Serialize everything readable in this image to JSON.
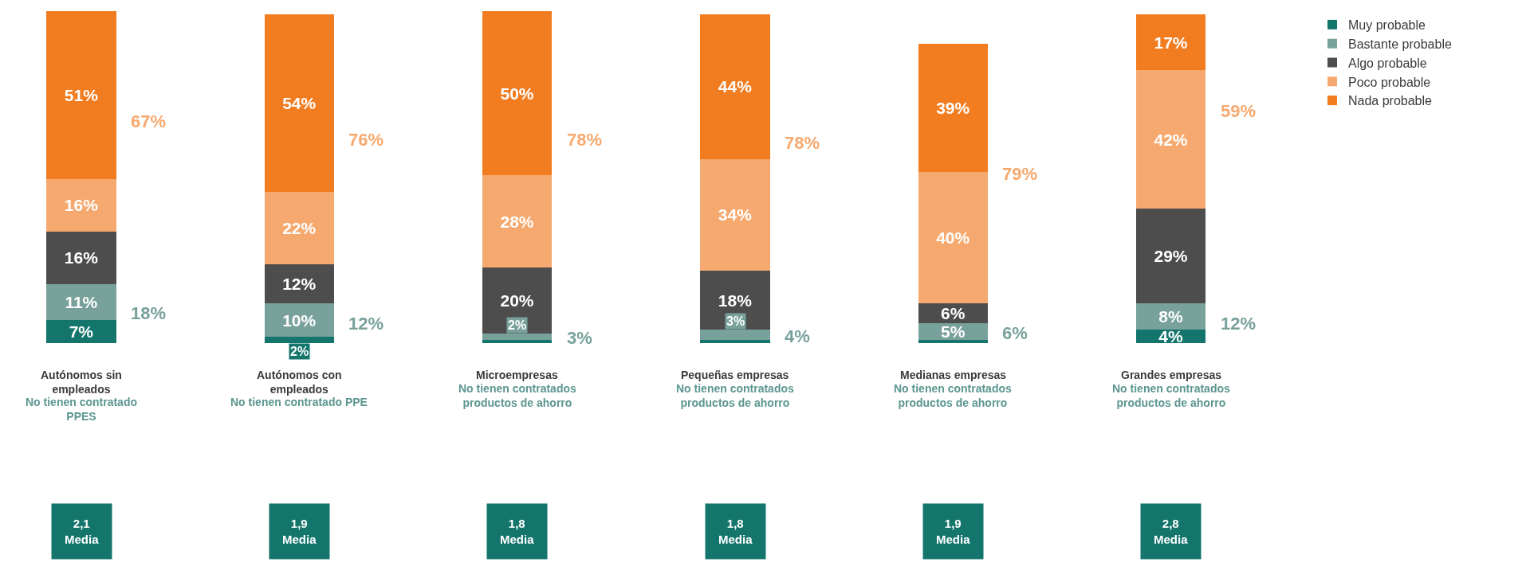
{
  "chart_data": {
    "type": "bar",
    "stacked": true,
    "categories": [
      "Autónomos sin empleados",
      "Autónomos con empleados",
      "Microempresas",
      "Pequeñas empresas",
      "Medianas empresas",
      "Grandes empresas"
    ],
    "ylim": [
      0,
      101
    ],
    "series": [
      {
        "name": "Muy probable",
        "color": "#13756c",
        "values": [
          7,
          2,
          1,
          1,
          1,
          4
        ],
        "value_labels": [
          "7%",
          "2%",
          null,
          null,
          null,
          "4%"
        ]
      },
      {
        "name": "Bastante probable",
        "color": "#78a19b",
        "values": [
          11,
          10,
          2,
          3,
          5,
          8
        ],
        "value_labels": [
          "11%",
          "10%",
          "2%",
          "3%",
          "5%",
          "8%"
        ]
      },
      {
        "name": "Algo probable",
        "color": "#4d4d4d",
        "values": [
          16,
          12,
          20,
          18,
          6,
          29
        ],
        "value_labels": [
          "16%",
          "12%",
          "20%",
          "18%",
          "6%",
          "29%"
        ]
      },
      {
        "name": "Poco probable",
        "color": "#f6a96f",
        "values": [
          16,
          22,
          28,
          34,
          40,
          42
        ],
        "value_labels": [
          "16%",
          "22%",
          "28%",
          "34%",
          "40%",
          "42%"
        ]
      },
      {
        "name": "Nada probable",
        "color": "#f27c20",
        "values": [
          51,
          54,
          50,
          44,
          39,
          17
        ],
        "value_labels": [
          "51%",
          "54%",
          "50%",
          "44%",
          "39%",
          "17%"
        ]
      }
    ],
    "annotations": [
      "18%",
      "67%",
      "No tienen contratado PPES",
      "2,1 Media",
      "12%",
      "76%",
      "No tienen contratado PPE",
      "1,9 Media",
      "3%",
      "78%",
      "No tienen contratados productos de ahorro",
      "1,8 Media",
      "4%",
      "78%",
      "No tienen contratados productos de ahorro",
      "1,8 Media",
      "6%",
      "79%",
      "No tienen contratados productos de ahorro",
      "1,9 Media",
      "12%",
      "59%",
      "No tienen contratados productos de ahorro",
      "2,8 Media"
    ],
    "legend": "right"
  }
}
